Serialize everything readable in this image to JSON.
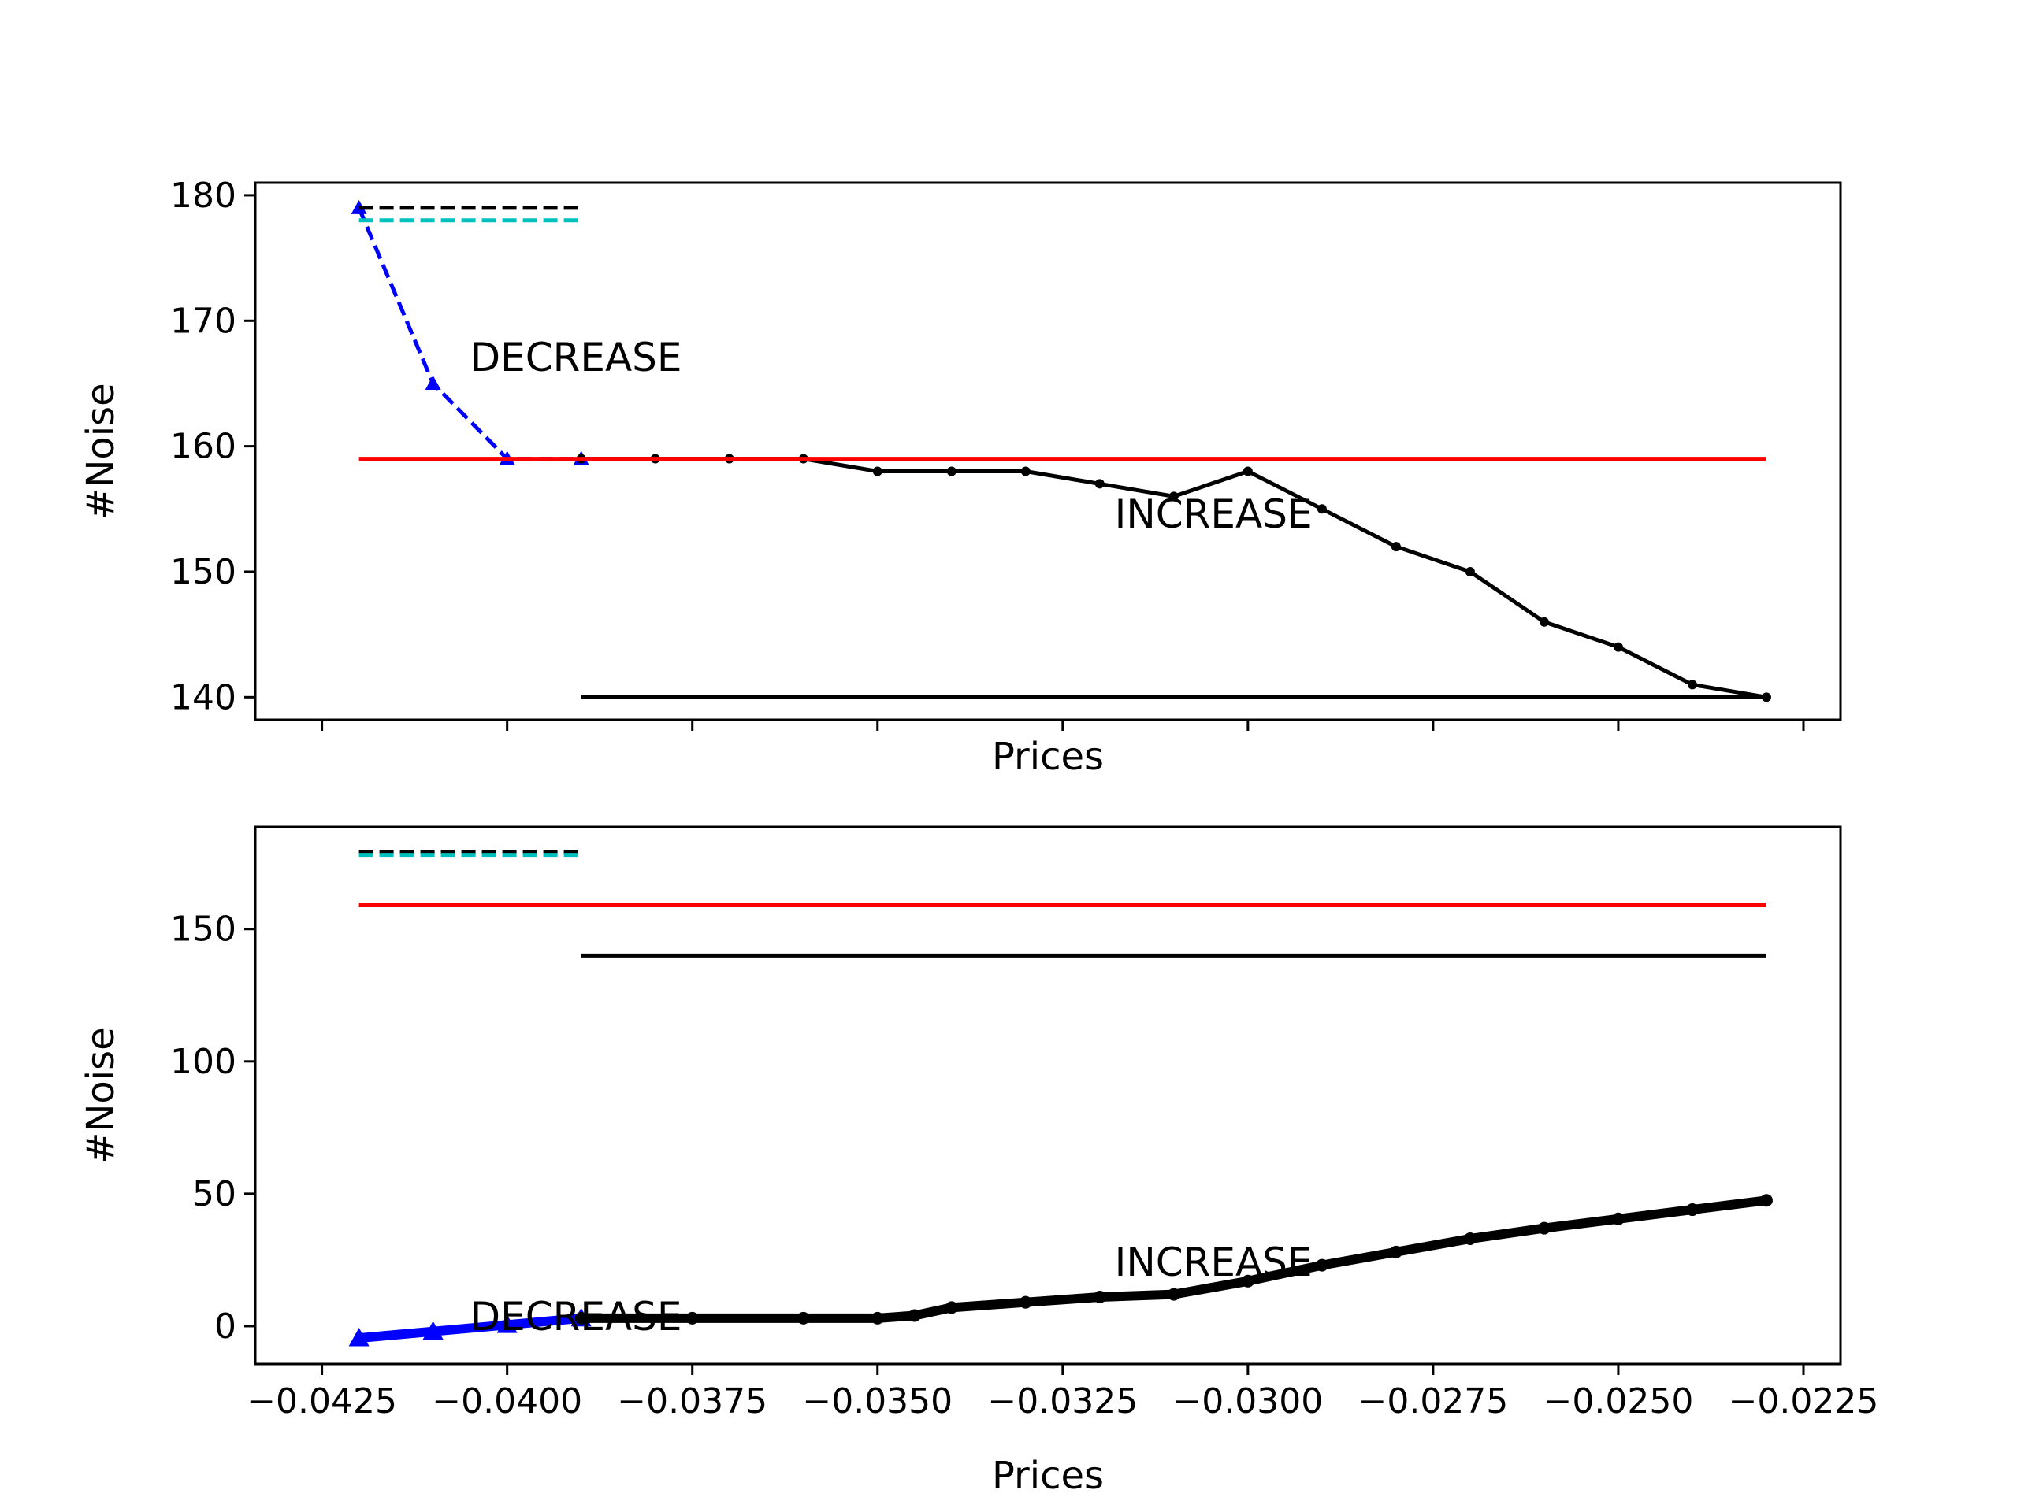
{
  "chart_data": [
    {
      "type": "line",
      "xlabel": "Prices",
      "ylabel": "#Noise",
      "xlim": [
        -0.0434,
        -0.022
      ],
      "ylim": [
        138.2,
        181.0
      ],
      "xticks": [
        -0.0425,
        -0.04,
        -0.0375,
        -0.035,
        -0.0325,
        -0.03,
        -0.0275,
        -0.025,
        -0.0225
      ],
      "xtick_labels_shown": false,
      "yticks": [
        140,
        150,
        160,
        170,
        180
      ],
      "ytick_labels": [
        "140",
        "150",
        "160",
        "170",
        "180"
      ],
      "annotations": [
        {
          "text": "DECREASE",
          "x": -0.0405,
          "y": 166
        },
        {
          "text": "INCREASE",
          "x": -0.0318,
          "y": 153.5
        }
      ],
      "series": [
        {
          "style": "dashed",
          "color": "#0000ff",
          "marker": "triangle",
          "x": [
            -0.042,
            -0.041,
            -0.04,
            -0.039
          ],
          "y": [
            179,
            165,
            159,
            159
          ]
        },
        {
          "style": "solid",
          "color": "#000000",
          "marker": "dot",
          "x": [
            -0.039,
            -0.038,
            -0.037,
            -0.036,
            -0.035,
            -0.034,
            -0.033,
            -0.032,
            -0.031,
            -0.03,
            -0.029,
            -0.028,
            -0.027,
            -0.026,
            -0.025,
            -0.024,
            -0.023
          ],
          "y": [
            159,
            159,
            159,
            159,
            158,
            158,
            158,
            157,
            156,
            158,
            155,
            152,
            150,
            146,
            144,
            141,
            140
          ]
        },
        {
          "style": "dashed",
          "color": "#000000",
          "x": [
            -0.042,
            -0.039
          ],
          "y": [
            179,
            179
          ]
        },
        {
          "style": "dashed",
          "color": "#00bfbf",
          "x": [
            -0.042,
            -0.039
          ],
          "y": [
            178,
            178
          ]
        },
        {
          "style": "solid",
          "color": "#ff0000",
          "x": [
            -0.042,
            -0.023
          ],
          "y": [
            159,
            159
          ]
        },
        {
          "style": "solid",
          "color": "#000000",
          "x": [
            -0.039,
            -0.023
          ],
          "y": [
            140,
            140
          ]
        }
      ]
    },
    {
      "type": "line",
      "xlabel": "Prices",
      "ylabel": "#Noise",
      "xlim": [
        -0.0434,
        -0.022
      ],
      "ylim": [
        -14.3,
        188.6
      ],
      "xticks": [
        -0.0425,
        -0.04,
        -0.0375,
        -0.035,
        -0.0325,
        -0.03,
        -0.0275,
        -0.025,
        -0.0225
      ],
      "xtick_labels": [
        "−0.0425",
        "−0.0400",
        "−0.0375",
        "−0.0350",
        "−0.0325",
        "−0.0300",
        "−0.0275",
        "−0.0250",
        "−0.0225"
      ],
      "yticks": [
        0,
        50,
        100,
        150
      ],
      "ytick_labels": [
        "0",
        "50",
        "100",
        "150"
      ],
      "annotations": [
        {
          "text": "DECREASE",
          "x": -0.0405,
          "y": -1.5
        },
        {
          "text": "INCREASE",
          "x": -0.0318,
          "y": 19
        }
      ],
      "series": [
        {
          "style": "thick",
          "color": "#0000ff",
          "marker": "triangle",
          "x": [
            -0.042,
            -0.041,
            -0.04,
            -0.039
          ],
          "y": [
            -4.5,
            -2,
            0.5,
            3
          ]
        },
        {
          "style": "thick",
          "color": "#000000",
          "marker": "dot",
          "x": [
            -0.039,
            -0.0375,
            -0.036,
            -0.035,
            -0.0345,
            -0.034,
            -0.033,
            -0.032,
            -0.031,
            -0.03,
            -0.029,
            -0.028,
            -0.027,
            -0.026,
            -0.025,
            -0.024,
            -0.023
          ],
          "y": [
            3,
            3,
            3,
            3,
            4,
            7,
            9,
            11,
            12,
            17,
            23,
            28,
            33,
            37,
            40.5,
            44,
            47.5
          ]
        },
        {
          "style": "dashed",
          "color": "#000000",
          "x": [
            -0.042,
            -0.039
          ],
          "y": [
            179,
            179
          ]
        },
        {
          "style": "dashed",
          "color": "#00bfbf",
          "x": [
            -0.042,
            -0.039
          ],
          "y": [
            178,
            178
          ]
        },
        {
          "style": "solid",
          "color": "#ff0000",
          "x": [
            -0.042,
            -0.023
          ],
          "y": [
            159,
            159
          ]
        },
        {
          "style": "solid",
          "color": "#000000",
          "x": [
            -0.039,
            -0.023
          ],
          "y": [
            140,
            140
          ]
        }
      ]
    }
  ]
}
